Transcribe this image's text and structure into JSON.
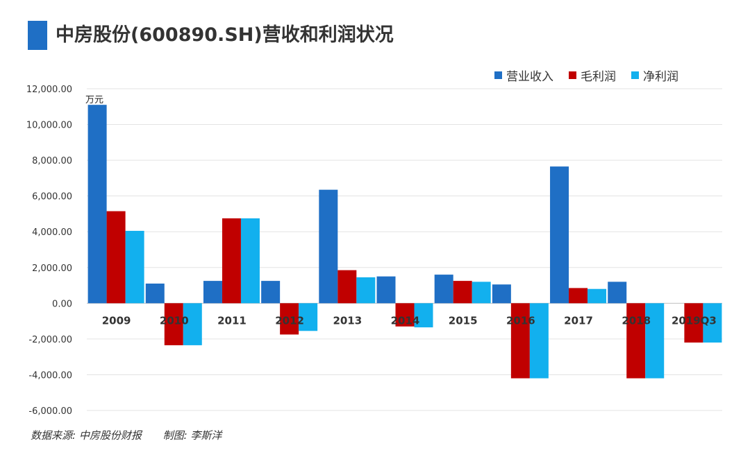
{
  "title": "中房股份(600890.SH)营收和利润状况",
  "footer": {
    "source": "数据来源: 中房股份财报",
    "author": "制图: 李斯洋"
  },
  "colors": {
    "accent": "#1f6fc5"
  },
  "chart_data": {
    "type": "bar",
    "unit_label": "万元",
    "categories": [
      "2009",
      "2010",
      "2011",
      "2012",
      "2013",
      "2014",
      "2015",
      "2016",
      "2017",
      "2018",
      "2019Q3"
    ],
    "series": [
      {
        "name": "营业收入",
        "color": "#1f6fc5",
        "values": [
          11100,
          1100,
          1250,
          1250,
          6350,
          1500,
          1600,
          1050,
          7650,
          1200,
          0
        ]
      },
      {
        "name": "毛利润",
        "color": "#c00000",
        "values": [
          5150,
          -2350,
          4750,
          -1750,
          1850,
          -1300,
          1250,
          -4200,
          850,
          -4200,
          -2200
        ]
      },
      {
        "name": "净利润",
        "color": "#12b0ee",
        "values": [
          4050,
          -2350,
          4750,
          -1550,
          1450,
          -1350,
          1200,
          -4200,
          800,
          -4200,
          -2200
        ]
      }
    ],
    "ylim": [
      -6000,
      12000
    ],
    "yticks": [
      "12,000.00",
      "10,000.00",
      "8,000.00",
      "6,000.00",
      "4,000.00",
      "2,000.00",
      "0.00",
      "-2,000.00",
      "-4,000.00",
      "-6,000.00"
    ],
    "ytick_values": [
      12000,
      10000,
      8000,
      6000,
      4000,
      2000,
      0,
      -2000,
      -4000,
      -6000
    ],
    "legend_position": "top-right",
    "grid": true
  }
}
